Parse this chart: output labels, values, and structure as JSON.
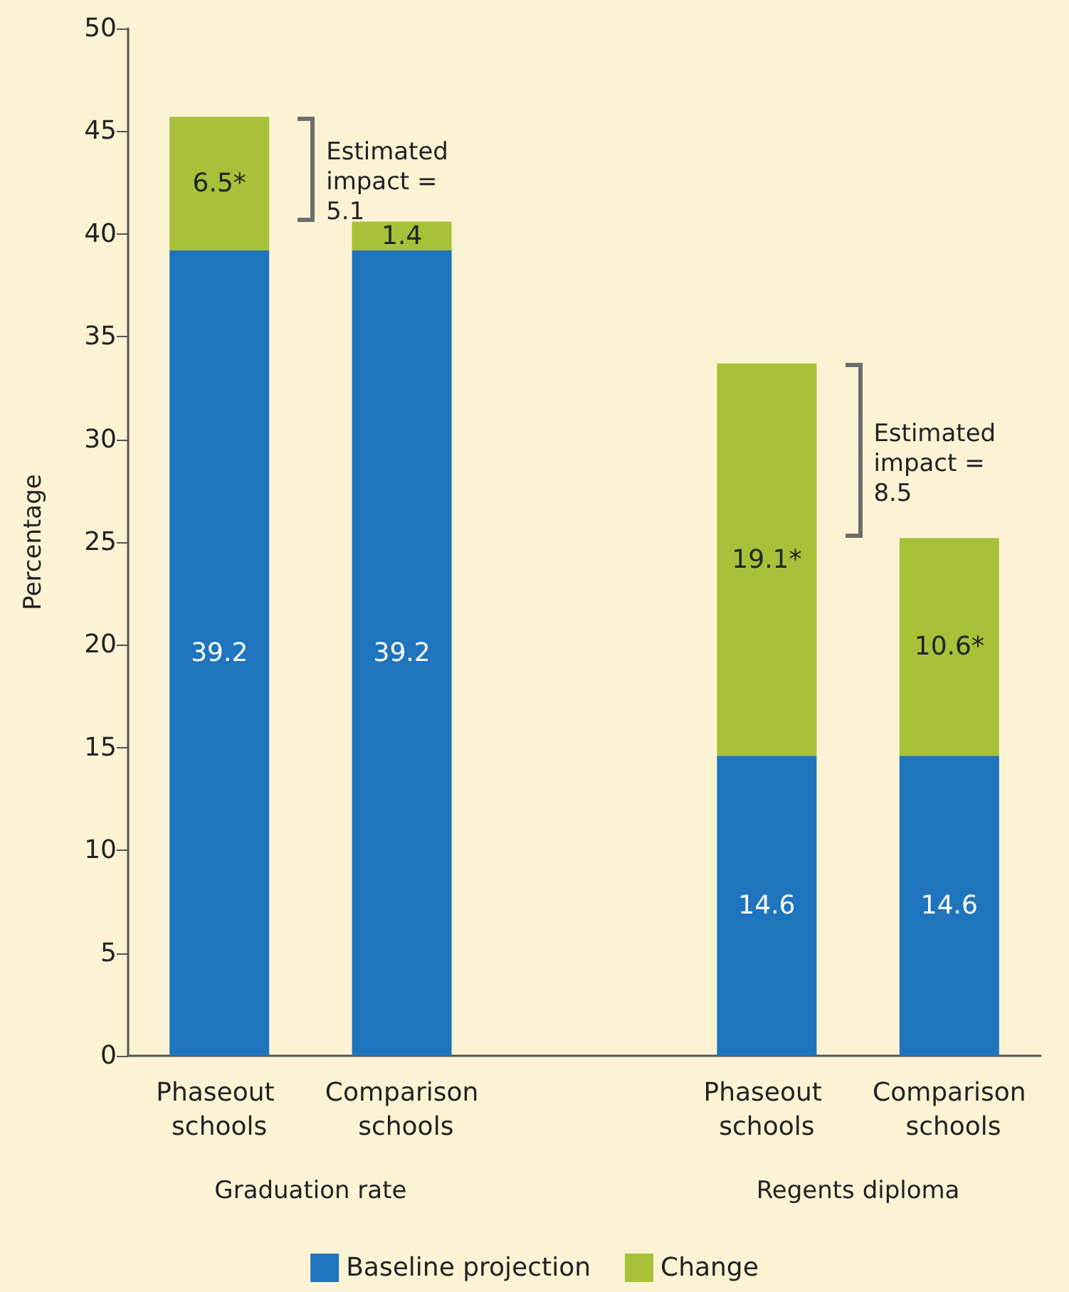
{
  "chart_data": {
    "type": "bar",
    "ylabel": "Percentage",
    "categories": [
      "Phaseout schools",
      "Comparison schools",
      null,
      "Phaseout schools",
      "Comparison schools"
    ],
    "stacked": true,
    "series": [
      {
        "name": "Baseline projection",
        "color": "#1f75bd",
        "values": [
          39.2,
          39.2,
          null,
          14.6,
          14.6
        ],
        "value_labels": [
          "39.2",
          "39.2",
          null,
          "14.6",
          "14.6"
        ]
      },
      {
        "name": "Change",
        "color": "#a7c139",
        "values": [
          6.5,
          1.4,
          null,
          19.1,
          10.6
        ],
        "value_labels": [
          "6.5*",
          "1.4",
          null,
          "19.1*",
          "10.6*"
        ]
      }
    ],
    "ylim": [
      0,
      50
    ],
    "yticks": [
      0,
      5,
      10,
      15,
      20,
      25,
      30,
      35,
      40,
      45,
      50
    ],
    "legend": "bottom",
    "annotations": [
      "Estimated impact = 5.1",
      "Estimated impact = 8.5",
      "Graduation rate",
      "Regents diploma"
    ]
  }
}
